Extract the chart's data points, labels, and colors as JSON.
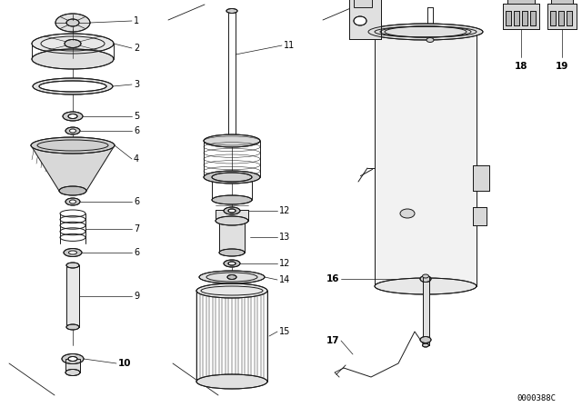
{
  "bg_color": "#ffffff",
  "line_color": "#1a1a1a",
  "fig_width": 6.4,
  "fig_height": 4.48,
  "watermark": "0000388C",
  "lw": 0.7
}
